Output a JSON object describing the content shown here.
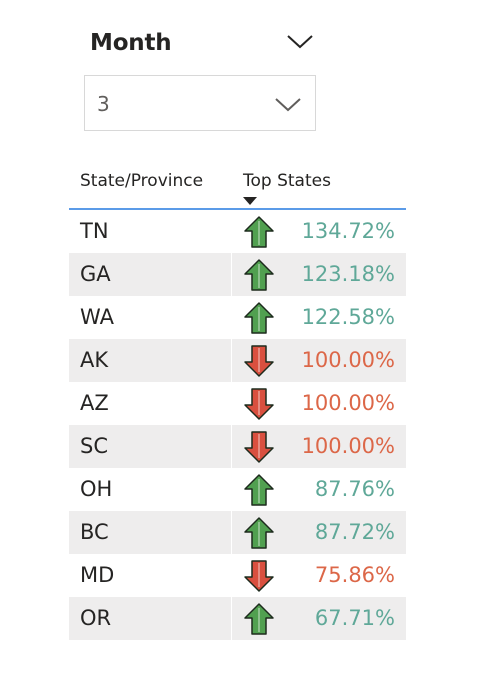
{
  "slicer": {
    "title": "Month",
    "selected_value": "3"
  },
  "table": {
    "headers": {
      "state": "State/Province",
      "top_states": "Top States"
    },
    "colors": {
      "up": "#5fa898",
      "down": "#dc6748",
      "up_arrow_fill": "#51a050",
      "down_arrow_fill": "#d9503f"
    },
    "rows": [
      {
        "state": "TN",
        "value": "134.72%",
        "trend": "up"
      },
      {
        "state": "GA",
        "value": "123.18%",
        "trend": "up"
      },
      {
        "state": "WA",
        "value": "122.58%",
        "trend": "up"
      },
      {
        "state": "AK",
        "value": "100.00%",
        "trend": "down"
      },
      {
        "state": "AZ",
        "value": "100.00%",
        "trend": "down"
      },
      {
        "state": "SC",
        "value": "100.00%",
        "trend": "down"
      },
      {
        "state": "OH",
        "value": "87.76%",
        "trend": "up"
      },
      {
        "state": "BC",
        "value": "87.72%",
        "trend": "up"
      },
      {
        "state": "MD",
        "value": "75.86%",
        "trend": "down"
      },
      {
        "state": "OR",
        "value": "67.71%",
        "trend": "up"
      }
    ]
  }
}
